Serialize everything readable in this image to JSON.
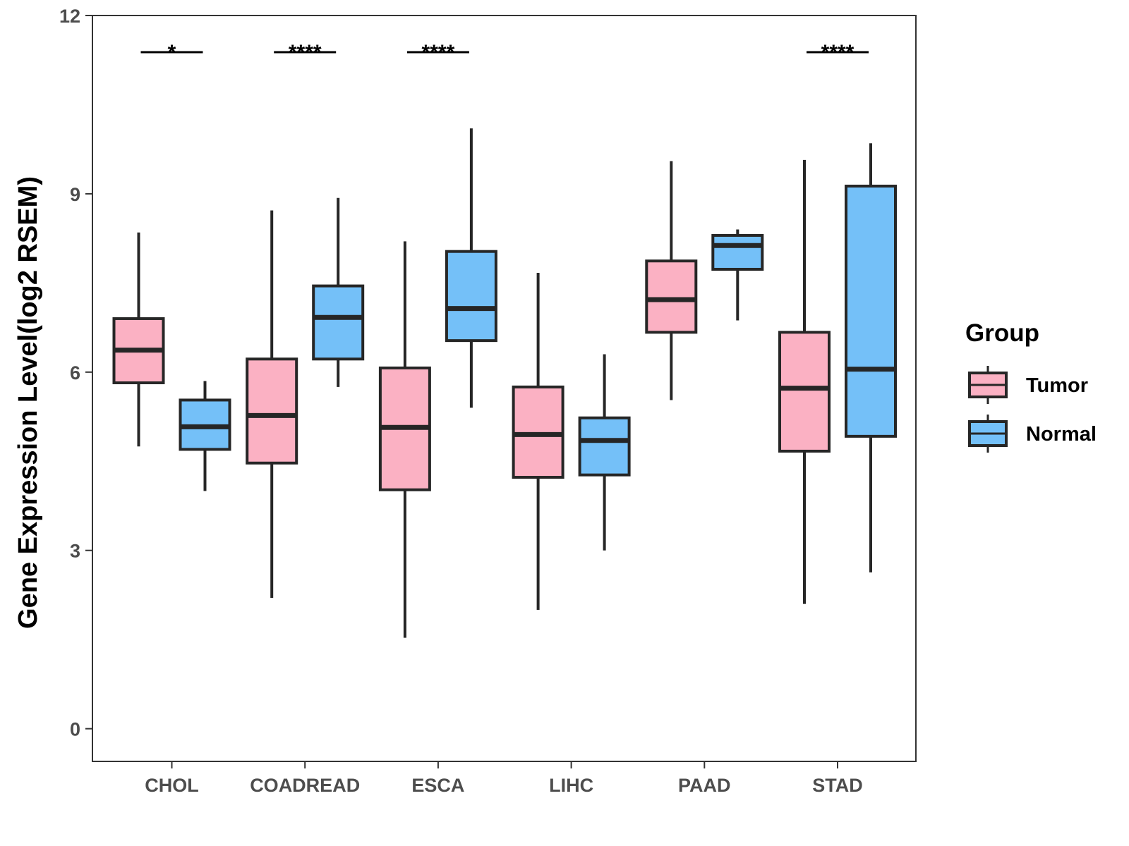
{
  "chart_data": {
    "type": "boxplot",
    "title": "",
    "xlabel": "",
    "ylabel": "Gene Expression Level(log2 RSEM)",
    "ylim": [
      -0.55,
      12
    ],
    "yticks": [
      0,
      3,
      6,
      9,
      12
    ],
    "categories": [
      "CHOL",
      "COADREAD",
      "ESCA",
      "LIHC",
      "PAAD",
      "STAD"
    ],
    "legend": {
      "title": "Group",
      "position": "right",
      "entries": [
        "Tumor",
        "Normal"
      ]
    },
    "colors": {
      "Tumor": "#FBB1C3",
      "Normal": "#74C0F8",
      "outline": "#262626"
    },
    "series": [
      {
        "name": "Tumor",
        "boxes": [
          {
            "category": "CHOL",
            "min": 4.75,
            "q1": 5.82,
            "median": 6.37,
            "q3": 6.9,
            "max": 8.35
          },
          {
            "category": "COADREAD",
            "min": 2.2,
            "q1": 4.47,
            "median": 5.27,
            "q3": 6.22,
            "max": 8.72
          },
          {
            "category": "ESCA",
            "min": 1.53,
            "q1": 4.02,
            "median": 5.07,
            "q3": 6.07,
            "max": 8.2
          },
          {
            "category": "LIHC",
            "min": 2.0,
            "q1": 4.23,
            "median": 4.95,
            "q3": 5.75,
            "max": 7.67
          },
          {
            "category": "PAAD",
            "min": 5.53,
            "q1": 6.67,
            "median": 7.22,
            "q3": 7.87,
            "max": 9.55
          },
          {
            "category": "STAD",
            "min": 2.1,
            "q1": 4.67,
            "median": 5.73,
            "q3": 6.67,
            "max": 9.57
          }
        ]
      },
      {
        "name": "Normal",
        "boxes": [
          {
            "category": "CHOL",
            "min": 4.0,
            "q1": 4.7,
            "median": 5.08,
            "q3": 5.53,
            "max": 5.85
          },
          {
            "category": "COADREAD",
            "min": 5.75,
            "q1": 6.22,
            "median": 6.92,
            "q3": 7.45,
            "max": 8.93
          },
          {
            "category": "ESCA",
            "min": 5.4,
            "q1": 6.53,
            "median": 7.07,
            "q3": 8.03,
            "max": 10.1
          },
          {
            "category": "LIHC",
            "min": 3.0,
            "q1": 4.27,
            "median": 4.85,
            "q3": 5.23,
            "max": 6.3
          },
          {
            "category": "PAAD",
            "min": 6.87,
            "q1": 7.73,
            "median": 8.13,
            "q3": 8.3,
            "max": 8.4
          },
          {
            "category": "STAD",
            "min": 2.63,
            "q1": 4.92,
            "median": 6.05,
            "q3": 9.13,
            "max": 9.85
          }
        ]
      }
    ],
    "annotations": [
      {
        "category": "CHOL",
        "label": "*"
      },
      {
        "category": "COADREAD",
        "label": "****"
      },
      {
        "category": "ESCA",
        "label": "****"
      },
      {
        "category": "STAD",
        "label": "****"
      }
    ]
  }
}
